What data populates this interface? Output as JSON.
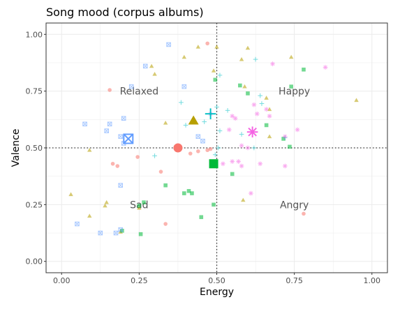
{
  "chart_data": {
    "type": "scatter",
    "title": "Song mood (corpus albums)",
    "xlabel": "Energy",
    "ylabel": "Valence",
    "xlim": [
      -0.05,
      1.05
    ],
    "ylim": [
      -0.05,
      1.05
    ],
    "x_ticks": [
      "0.00",
      "0.25",
      "0.50",
      "0.75",
      "1.00"
    ],
    "y_ticks": [
      "0.00",
      "0.25",
      "0.50",
      "0.75",
      "1.00"
    ],
    "grid": true,
    "legend": "none",
    "reference_lines": {
      "x": 0.5,
      "y": 0.5,
      "style": "dotted"
    },
    "quadrant_labels": [
      {
        "text": "Relaxed",
        "x": 0.25,
        "y": 0.75
      },
      {
        "text": "Happy",
        "x": 0.75,
        "y": 0.75
      },
      {
        "text": "Sad",
        "x": 0.25,
        "y": 0.25
      },
      {
        "text": "Angry",
        "x": 0.75,
        "y": 0.25
      }
    ],
    "series": [
      {
        "shape": "circle",
        "color": "#F8766D",
        "points": [
          [
            0.155,
            0.755
          ],
          [
            0.165,
            0.43
          ],
          [
            0.18,
            0.42
          ],
          [
            0.245,
            0.46
          ],
          [
            0.32,
            0.395
          ],
          [
            0.335,
            0.165
          ],
          [
            0.415,
            0.475
          ],
          [
            0.44,
            0.485
          ],
          [
            0.47,
            0.49
          ],
          [
            0.48,
            0.495
          ],
          [
            0.78,
            0.21
          ],
          [
            0.47,
            0.96
          ]
        ],
        "centroid": [
          0.375,
          0.5
        ]
      },
      {
        "shape": "triangle",
        "color": "#B79F00",
        "points": [
          [
            0.03,
            0.295
          ],
          [
            0.09,
            0.2
          ],
          [
            0.09,
            0.49
          ],
          [
            0.14,
            0.245
          ],
          [
            0.145,
            0.26
          ],
          [
            0.19,
            0.13
          ],
          [
            0.25,
            0.235
          ],
          [
            0.29,
            0.86
          ],
          [
            0.3,
            0.825
          ],
          [
            0.335,
            0.61
          ],
          [
            0.395,
            0.9
          ],
          [
            0.44,
            0.945
          ],
          [
            0.49,
            0.84
          ],
          [
            0.5,
            0.945
          ],
          [
            0.58,
            0.89
          ],
          [
            0.585,
            0.27
          ],
          [
            0.59,
            0.77
          ],
          [
            0.6,
            0.94
          ],
          [
            0.66,
            0.72
          ],
          [
            0.67,
            0.67
          ],
          [
            0.67,
            0.55
          ],
          [
            0.74,
            0.9
          ],
          [
            0.95,
            0.71
          ]
        ],
        "centroid": [
          0.425,
          0.62
        ]
      },
      {
        "shape": "square",
        "color": "#00BA38",
        "points": [
          [
            0.195,
            0.135
          ],
          [
            0.25,
            0.245
          ],
          [
            0.255,
            0.12
          ],
          [
            0.265,
            0.26
          ],
          [
            0.335,
            0.335
          ],
          [
            0.395,
            0.3
          ],
          [
            0.41,
            0.31
          ],
          [
            0.42,
            0.3
          ],
          [
            0.45,
            0.195
          ],
          [
            0.49,
            0.25
          ],
          [
            0.495,
            0.8
          ],
          [
            0.55,
            0.385
          ],
          [
            0.575,
            0.775
          ],
          [
            0.6,
            0.74
          ],
          [
            0.66,
            0.6
          ],
          [
            0.715,
            0.54
          ],
          [
            0.735,
            0.505
          ],
          [
            0.74,
            0.77
          ],
          [
            0.78,
            0.845
          ]
        ],
        "centroid": [
          0.49,
          0.43
        ]
      },
      {
        "shape": "plus",
        "color": "#00BFC4",
        "points": [
          [
            0.3,
            0.465
          ],
          [
            0.385,
            0.7
          ],
          [
            0.4,
            0.6
          ],
          [
            0.46,
            0.615
          ],
          [
            0.495,
            0.47
          ],
          [
            0.5,
            0.68
          ],
          [
            0.51,
            0.575
          ],
          [
            0.51,
            0.82
          ],
          [
            0.535,
            0.665
          ],
          [
            0.58,
            0.56
          ],
          [
            0.62,
            0.5
          ],
          [
            0.625,
            0.89
          ],
          [
            0.64,
            0.73
          ],
          [
            0.645,
            0.695
          ],
          [
            0.72,
            0.545
          ],
          [
            0.505,
            0.5
          ]
        ],
        "centroid": [
          0.48,
          0.65
        ]
      },
      {
        "shape": "square-x",
        "color": "#619CFF",
        "points": [
          [
            0.05,
            0.165
          ],
          [
            0.075,
            0.605
          ],
          [
            0.125,
            0.125
          ],
          [
            0.145,
            0.575
          ],
          [
            0.155,
            0.605
          ],
          [
            0.175,
            0.125
          ],
          [
            0.19,
            0.14
          ],
          [
            0.19,
            0.335
          ],
          [
            0.19,
            0.55
          ],
          [
            0.2,
            0.52
          ],
          [
            0.2,
            0.63
          ],
          [
            0.225,
            0.77
          ],
          [
            0.27,
            0.86
          ],
          [
            0.345,
            0.955
          ],
          [
            0.395,
            0.77
          ],
          [
            0.455,
            0.53
          ],
          [
            0.44,
            0.55
          ]
        ],
        "centroid": [
          0.215,
          0.54
        ]
      },
      {
        "shape": "asterisk",
        "color": "#F564E3",
        "points": [
          [
            0.48,
            0.65
          ],
          [
            0.52,
            0.43
          ],
          [
            0.54,
            0.58
          ],
          [
            0.55,
            0.44
          ],
          [
            0.55,
            0.64
          ],
          [
            0.56,
            0.63
          ],
          [
            0.57,
            0.44
          ],
          [
            0.58,
            0.42
          ],
          [
            0.58,
            0.51
          ],
          [
            0.6,
            0.5
          ],
          [
            0.61,
            0.3
          ],
          [
            0.62,
            0.69
          ],
          [
            0.63,
            0.65
          ],
          [
            0.64,
            0.43
          ],
          [
            0.66,
            0.67
          ],
          [
            0.67,
            0.64
          ],
          [
            0.68,
            0.87
          ],
          [
            0.72,
            0.42
          ],
          [
            0.72,
            0.55
          ],
          [
            0.76,
            0.58
          ],
          [
            0.85,
            0.855
          ]
        ],
        "centroid": [
          0.615,
          0.57
        ]
      }
    ]
  }
}
